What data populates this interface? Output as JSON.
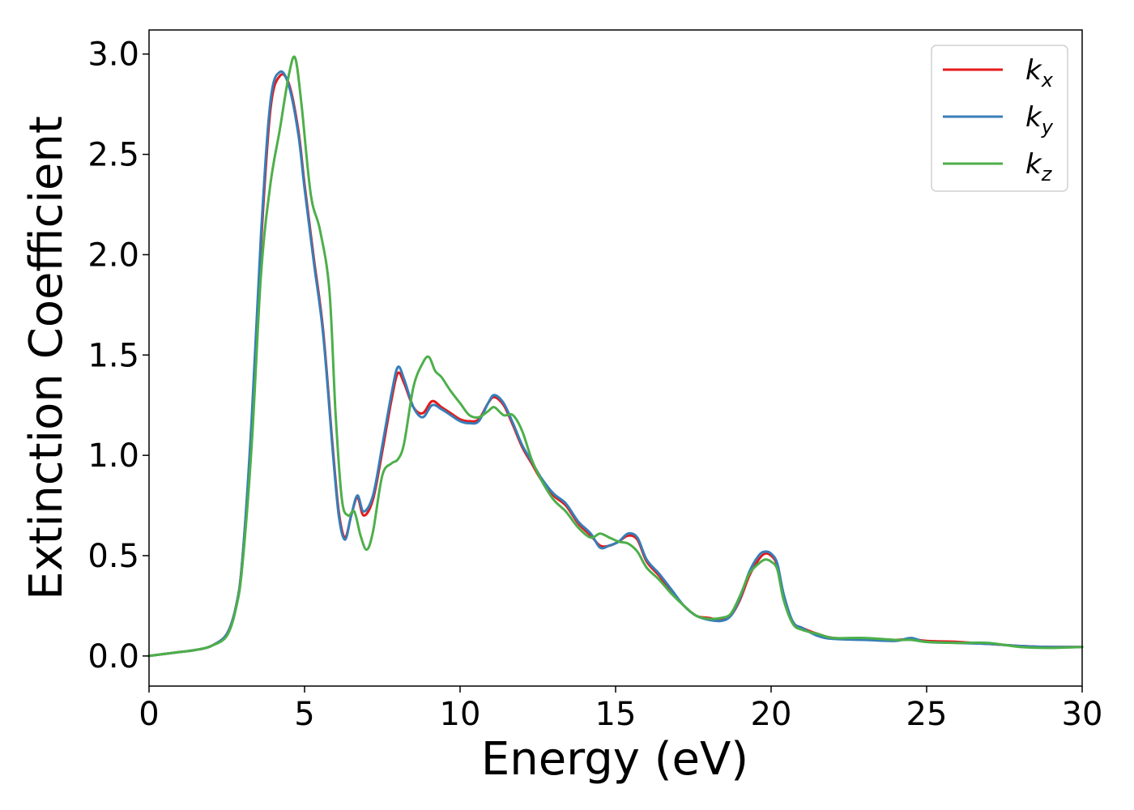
{
  "chart_data": {
    "type": "line",
    "title": "",
    "xlabel": "Energy (eV)",
    "ylabel": "Extinction Coefficient",
    "xlim": [
      0,
      30
    ],
    "ylim": [
      -0.15,
      3.12
    ],
    "xticks": [
      0,
      5,
      10,
      15,
      20,
      25,
      30
    ],
    "xtick_labels": [
      "0",
      "5",
      "10",
      "15",
      "20",
      "25",
      "30"
    ],
    "yticks": [
      0.0,
      0.5,
      1.0,
      1.5,
      2.0,
      2.5,
      3.0
    ],
    "ytick_labels": [
      "0.0",
      "0.5",
      "1.0",
      "1.5",
      "2.0",
      "2.5",
      "3.0"
    ],
    "grid": false,
    "legend_position": "top-right",
    "series": [
      {
        "name": "k",
        "subscript": "x",
        "color": "#e41a1c",
        "x": [
          0,
          1,
          1.5,
          2,
          2.5,
          2.8,
          3.0,
          3.3,
          3.6,
          3.9,
          4.2,
          4.5,
          4.8,
          5.0,
          5.3,
          5.6,
          5.9,
          6.1,
          6.3,
          6.5,
          6.7,
          6.9,
          7.2,
          7.5,
          7.8,
          8.0,
          8.2,
          8.5,
          8.8,
          9.1,
          9.4,
          9.7,
          10.0,
          10.3,
          10.6,
          10.9,
          11.1,
          11.4,
          11.7,
          12.0,
          12.3,
          12.6,
          13.0,
          13.4,
          13.8,
          14.2,
          14.5,
          14.8,
          15.1,
          15.4,
          15.7,
          16.0,
          16.4,
          16.8,
          17.2,
          17.6,
          18.0,
          18.4,
          18.7,
          19.0,
          19.3,
          19.6,
          19.8,
          20.0,
          20.2,
          20.4,
          20.7,
          21.0,
          21.5,
          22.0,
          23.0,
          24.0,
          24.5,
          25.0,
          26.0,
          27.0,
          28.0,
          29.0,
          30.0
        ],
        "y": [
          0.0,
          0.02,
          0.03,
          0.05,
          0.11,
          0.25,
          0.48,
          1.15,
          2.05,
          2.72,
          2.89,
          2.85,
          2.62,
          2.35,
          1.98,
          1.62,
          1.05,
          0.72,
          0.59,
          0.7,
          0.79,
          0.7,
          0.78,
          1.02,
          1.28,
          1.41,
          1.36,
          1.24,
          1.21,
          1.27,
          1.24,
          1.21,
          1.18,
          1.17,
          1.18,
          1.26,
          1.29,
          1.25,
          1.15,
          1.04,
          0.96,
          0.88,
          0.8,
          0.75,
          0.66,
          0.6,
          0.55,
          0.55,
          0.57,
          0.6,
          0.58,
          0.47,
          0.4,
          0.32,
          0.25,
          0.2,
          0.19,
          0.18,
          0.2,
          0.28,
          0.4,
          0.48,
          0.51,
          0.5,
          0.45,
          0.3,
          0.17,
          0.14,
          0.11,
          0.09,
          0.085,
          0.08,
          0.085,
          0.075,
          0.07,
          0.06,
          0.05,
          0.045,
          0.045
        ]
      },
      {
        "name": "k",
        "subscript": "y",
        "color": "#377eb8",
        "x": [
          0,
          1,
          1.5,
          2,
          2.5,
          2.8,
          3.0,
          3.3,
          3.6,
          3.9,
          4.2,
          4.5,
          4.8,
          5.0,
          5.3,
          5.6,
          5.9,
          6.1,
          6.3,
          6.5,
          6.7,
          6.9,
          7.2,
          7.5,
          7.8,
          8.0,
          8.2,
          8.5,
          8.8,
          9.1,
          9.4,
          9.7,
          10.0,
          10.3,
          10.6,
          10.9,
          11.1,
          11.4,
          11.7,
          12.0,
          12.3,
          12.6,
          13.0,
          13.4,
          13.8,
          14.2,
          14.5,
          14.8,
          15.1,
          15.4,
          15.7,
          16.0,
          16.4,
          16.8,
          17.2,
          17.6,
          18.0,
          18.4,
          18.7,
          19.0,
          19.3,
          19.6,
          19.8,
          20.0,
          20.2,
          20.4,
          20.7,
          21.0,
          21.5,
          22.0,
          23.0,
          24.0,
          24.5,
          25.0,
          26.0,
          27.0,
          28.0,
          29.0,
          30.0
        ],
        "y": [
          0.0,
          0.02,
          0.03,
          0.05,
          0.11,
          0.25,
          0.48,
          1.18,
          2.1,
          2.76,
          2.91,
          2.84,
          2.6,
          2.33,
          1.96,
          1.6,
          1.03,
          0.7,
          0.58,
          0.7,
          0.8,
          0.72,
          0.8,
          1.05,
          1.31,
          1.44,
          1.38,
          1.24,
          1.19,
          1.25,
          1.23,
          1.2,
          1.17,
          1.16,
          1.17,
          1.26,
          1.3,
          1.26,
          1.16,
          1.05,
          0.97,
          0.89,
          0.81,
          0.76,
          0.67,
          0.61,
          0.54,
          0.55,
          0.57,
          0.61,
          0.59,
          0.48,
          0.41,
          0.33,
          0.25,
          0.2,
          0.18,
          0.175,
          0.2,
          0.29,
          0.42,
          0.5,
          0.52,
          0.51,
          0.46,
          0.31,
          0.17,
          0.14,
          0.1,
          0.085,
          0.08,
          0.075,
          0.09,
          0.07,
          0.065,
          0.06,
          0.05,
          0.045,
          0.045
        ]
      },
      {
        "name": "k",
        "subscript": "z",
        "color": "#4daf4a",
        "x": [
          0,
          1,
          1.5,
          2,
          2.5,
          2.8,
          3.0,
          3.3,
          3.6,
          3.9,
          4.2,
          4.5,
          4.7,
          4.9,
          5.2,
          5.5,
          5.8,
          6.0,
          6.2,
          6.4,
          6.6,
          6.8,
          7.0,
          7.2,
          7.5,
          7.8,
          8.0,
          8.2,
          8.5,
          8.8,
          9.0,
          9.2,
          9.4,
          9.7,
          10.0,
          10.3,
          10.6,
          10.9,
          11.1,
          11.4,
          11.7,
          12.0,
          12.3,
          12.6,
          13.0,
          13.4,
          13.8,
          14.2,
          14.5,
          14.8,
          15.1,
          15.4,
          15.7,
          16.0,
          16.4,
          16.8,
          17.2,
          17.6,
          18.0,
          18.4,
          18.7,
          19.0,
          19.3,
          19.6,
          19.8,
          20.0,
          20.2,
          20.4,
          20.7,
          21.0,
          21.5,
          22.0,
          23.0,
          24.0,
          24.5,
          25.0,
          26.0,
          27.0,
          28.0,
          29.0,
          30.0
        ],
        "y": [
          0.0,
          0.02,
          0.03,
          0.05,
          0.1,
          0.24,
          0.45,
          1.05,
          1.9,
          2.35,
          2.62,
          2.9,
          2.98,
          2.75,
          2.3,
          2.12,
          1.82,
          1.2,
          0.78,
          0.7,
          0.72,
          0.6,
          0.53,
          0.62,
          0.9,
          0.96,
          0.98,
          1.06,
          1.34,
          1.46,
          1.49,
          1.42,
          1.39,
          1.32,
          1.26,
          1.2,
          1.19,
          1.22,
          1.24,
          1.2,
          1.2,
          1.12,
          0.98,
          0.88,
          0.78,
          0.72,
          0.64,
          0.59,
          0.61,
          0.59,
          0.57,
          0.56,
          0.52,
          0.44,
          0.38,
          0.31,
          0.25,
          0.2,
          0.185,
          0.19,
          0.21,
          0.3,
          0.41,
          0.46,
          0.48,
          0.47,
          0.43,
          0.28,
          0.16,
          0.13,
          0.11,
          0.09,
          0.09,
          0.08,
          0.08,
          0.07,
          0.065,
          0.065,
          0.045,
          0.04,
          0.045
        ]
      }
    ]
  }
}
